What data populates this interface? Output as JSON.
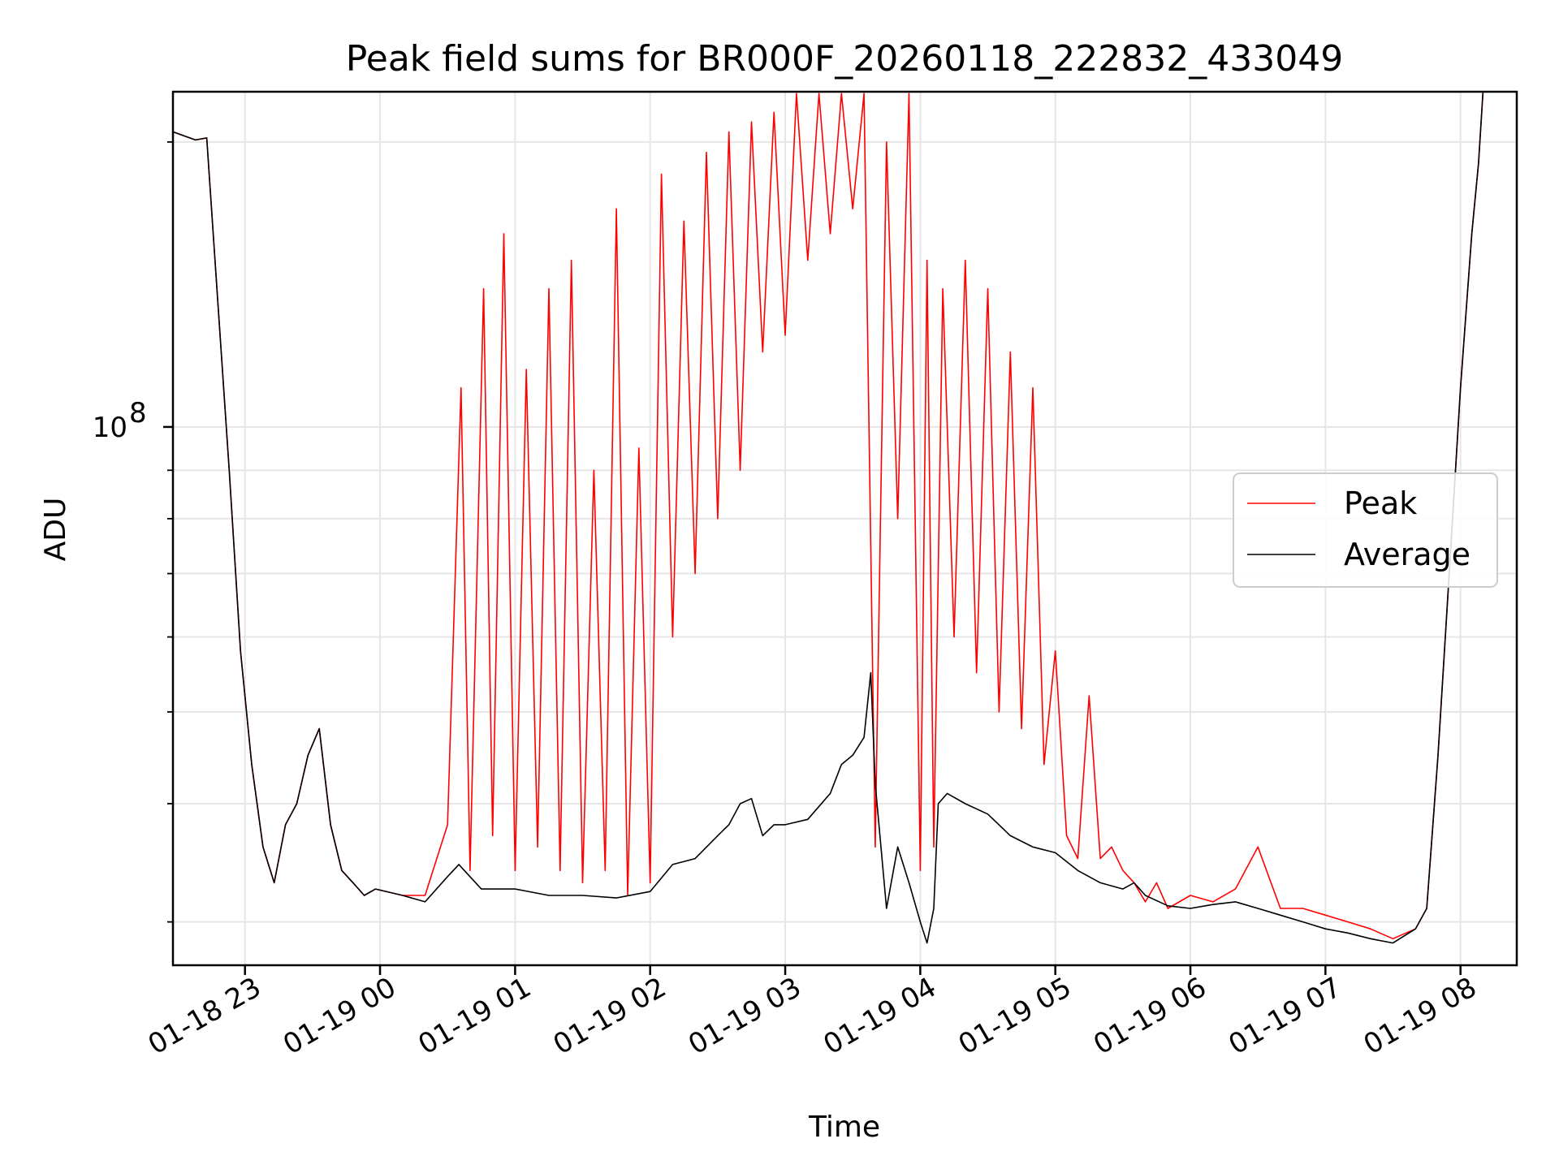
{
  "chart_data": {
    "type": "line",
    "title": "Peak field sums for BR000F_20260118_222832_433049",
    "xlabel": "Time",
    "ylabel": "ADU",
    "y_scale": "log",
    "ylim": [
      27000000,
      226000000
    ],
    "xlim": [
      "2026-01-18 22:28",
      "2026-01-19 08:25"
    ],
    "grid": true,
    "legend_position": "center-right",
    "x_ticks": [
      {
        "label": "01-18 23",
        "time": "2026-01-18 23:00"
      },
      {
        "label": "01-19 00",
        "time": "2026-01-19 00:00"
      },
      {
        "label": "01-19 01",
        "time": "2026-01-19 01:00"
      },
      {
        "label": "01-19 02",
        "time": "2026-01-19 02:00"
      },
      {
        "label": "01-19 03",
        "time": "2026-01-19 03:00"
      },
      {
        "label": "01-19 04",
        "time": "2026-01-19 04:00"
      },
      {
        "label": "01-19 05",
        "time": "2026-01-19 05:00"
      },
      {
        "label": "01-19 06",
        "time": "2026-01-19 06:00"
      },
      {
        "label": "01-19 07",
        "time": "2026-01-19 07:00"
      },
      {
        "label": "01-19 08",
        "time": "2026-01-19 08:00"
      }
    ],
    "y_ticks": [
      {
        "label": "10",
        "exponent": "8",
        "value": 100000000
      }
    ],
    "series": [
      {
        "name": "Peak",
        "color": "#ff0000",
        "x": [
          "2026-01-18 22:28",
          "2026-01-18 22:38",
          "2026-01-18 22:43",
          "2026-01-18 22:48",
          "2026-01-18 22:53",
          "2026-01-18 22:58",
          "2026-01-18 23:03",
          "2026-01-18 23:08",
          "2026-01-18 23:13",
          "2026-01-18 23:18",
          "2026-01-18 23:23",
          "2026-01-18 23:28",
          "2026-01-18 23:33",
          "2026-01-18 23:38",
          "2026-01-18 23:43",
          "2026-01-18 23:48",
          "2026-01-18 23:53",
          "2026-01-18 23:58",
          "2026-01-19 00:10",
          "2026-01-19 00:20",
          "2026-01-19 00:30",
          "2026-01-19 00:36",
          "2026-01-19 00:40",
          "2026-01-19 00:46",
          "2026-01-19 00:50",
          "2026-01-19 00:55",
          "2026-01-19 01:00",
          "2026-01-19 01:05",
          "2026-01-19 01:10",
          "2026-01-19 01:15",
          "2026-01-19 01:20",
          "2026-01-19 01:25",
          "2026-01-19 01:30",
          "2026-01-19 01:35",
          "2026-01-19 01:40",
          "2026-01-19 01:45",
          "2026-01-19 01:50",
          "2026-01-19 01:55",
          "2026-01-19 02:00",
          "2026-01-19 02:05",
          "2026-01-19 02:10",
          "2026-01-19 02:15",
          "2026-01-19 02:20",
          "2026-01-19 02:25",
          "2026-01-19 02:30",
          "2026-01-19 02:35",
          "2026-01-19 02:40",
          "2026-01-19 02:45",
          "2026-01-19 02:50",
          "2026-01-19 02:55",
          "2026-01-19 03:00",
          "2026-01-19 03:05",
          "2026-01-19 03:10",
          "2026-01-19 03:15",
          "2026-01-19 03:20",
          "2026-01-19 03:25",
          "2026-01-19 03:30",
          "2026-01-19 03:35",
          "2026-01-19 03:40",
          "2026-01-19 03:45",
          "2026-01-19 03:50",
          "2026-01-19 03:55",
          "2026-01-19 04:00",
          "2026-01-19 04:03",
          "2026-01-19 04:06",
          "2026-01-19 04:10",
          "2026-01-19 04:15",
          "2026-01-19 04:20",
          "2026-01-19 04:25",
          "2026-01-19 04:30",
          "2026-01-19 04:35",
          "2026-01-19 04:40",
          "2026-01-19 04:45",
          "2026-01-19 04:50",
          "2026-01-19 04:55",
          "2026-01-19 05:00",
          "2026-01-19 05:05",
          "2026-01-19 05:10",
          "2026-01-19 05:15",
          "2026-01-19 05:20",
          "2026-01-19 05:25",
          "2026-01-19 05:30",
          "2026-01-19 05:35",
          "2026-01-19 05:40",
          "2026-01-19 05:45",
          "2026-01-19 05:50",
          "2026-01-19 06:00",
          "2026-01-19 06:10",
          "2026-01-19 06:20",
          "2026-01-19 06:30",
          "2026-01-19 06:40",
          "2026-01-19 06:50",
          "2026-01-19 07:00",
          "2026-01-19 07:10",
          "2026-01-19 07:20",
          "2026-01-19 07:30",
          "2026-01-19 07:40",
          "2026-01-19 07:45",
          "2026-01-19 07:50",
          "2026-01-19 07:55",
          "2026-01-19 08:00",
          "2026-01-19 08:05",
          "2026-01-19 08:08",
          "2026-01-19 08:10",
          "2026-01-19 08:25"
        ],
        "y": [
          205000000,
          201000000,
          202000000,
          135000000,
          90000000,
          58000000,
          44000000,
          36000000,
          33000000,
          38000000,
          40000000,
          45000000,
          48000000,
          38000000,
          34000000,
          33000000,
          32000000,
          32500000,
          32000000,
          32000000,
          38000000,
          110000000,
          34000000,
          140000000,
          37000000,
          160000000,
          34000000,
          115000000,
          36000000,
          140000000,
          34000000,
          150000000,
          33000000,
          90000000,
          34000000,
          170000000,
          32000000,
          95000000,
          33000000,
          185000000,
          60000000,
          165000000,
          70000000,
          195000000,
          80000000,
          205000000,
          90000000,
          210000000,
          120000000,
          215000000,
          125000000,
          225000000,
          150000000,
          225000000,
          160000000,
          225000000,
          170000000,
          225000000,
          36000000,
          200000000,
          80000000,
          225000000,
          34000000,
          150000000,
          36000000,
          140000000,
          60000000,
          150000000,
          55000000,
          140000000,
          50000000,
          120000000,
          48000000,
          110000000,
          44000000,
          58000000,
          37000000,
          35000000,
          52000000,
          35000000,
          36000000,
          34000000,
          33000000,
          31500000,
          33000000,
          31000000,
          32000000,
          31500000,
          32500000,
          36000000,
          31000000,
          31000000,
          30500000,
          30000000,
          29500000,
          28800000,
          29500000,
          31000000,
          45000000,
          70000000,
          110000000,
          160000000,
          190000000,
          226000000,
          226000000
        ]
      },
      {
        "name": "Average",
        "color": "#000000",
        "x": [
          "2026-01-18 22:28",
          "2026-01-18 22:38",
          "2026-01-18 22:43",
          "2026-01-18 22:48",
          "2026-01-18 22:53",
          "2026-01-18 22:58",
          "2026-01-18 23:03",
          "2026-01-18 23:08",
          "2026-01-18 23:13",
          "2026-01-18 23:18",
          "2026-01-18 23:23",
          "2026-01-18 23:28",
          "2026-01-18 23:33",
          "2026-01-18 23:38",
          "2026-01-18 23:43",
          "2026-01-18 23:48",
          "2026-01-18 23:53",
          "2026-01-18 23:58",
          "2026-01-19 00:10",
          "2026-01-19 00:20",
          "2026-01-19 00:30",
          "2026-01-19 00:35",
          "2026-01-19 00:45",
          "2026-01-19 01:00",
          "2026-01-19 01:15",
          "2026-01-19 01:30",
          "2026-01-19 01:45",
          "2026-01-19 02:00",
          "2026-01-19 02:10",
          "2026-01-19 02:20",
          "2026-01-19 02:30",
          "2026-01-19 02:35",
          "2026-01-19 02:40",
          "2026-01-19 02:45",
          "2026-01-19 02:50",
          "2026-01-19 02:55",
          "2026-01-19 03:00",
          "2026-01-19 03:10",
          "2026-01-19 03:20",
          "2026-01-19 03:25",
          "2026-01-19 03:30",
          "2026-01-19 03:35",
          "2026-01-19 03:38",
          "2026-01-19 03:40",
          "2026-01-19 03:45",
          "2026-01-19 03:50",
          "2026-01-19 03:55",
          "2026-01-19 04:00",
          "2026-01-19 04:03",
          "2026-01-19 04:06",
          "2026-01-19 04:08",
          "2026-01-19 04:12",
          "2026-01-19 04:20",
          "2026-01-19 04:30",
          "2026-01-19 04:40",
          "2026-01-19 04:50",
          "2026-01-19 05:00",
          "2026-01-19 05:10",
          "2026-01-19 05:20",
          "2026-01-19 05:30",
          "2026-01-19 05:35",
          "2026-01-19 05:40",
          "2026-01-19 05:50",
          "2026-01-19 06:00",
          "2026-01-19 06:10",
          "2026-01-19 06:20",
          "2026-01-19 06:30",
          "2026-01-19 06:40",
          "2026-01-19 06:50",
          "2026-01-19 07:00",
          "2026-01-19 07:10",
          "2026-01-19 07:20",
          "2026-01-19 07:30",
          "2026-01-19 07:40",
          "2026-01-19 07:45",
          "2026-01-19 07:50",
          "2026-01-19 07:55",
          "2026-01-19 08:00",
          "2026-01-19 08:05",
          "2026-01-19 08:08",
          "2026-01-19 08:10",
          "2026-01-19 08:25"
        ],
        "y": [
          205000000,
          201000000,
          202000000,
          135000000,
          90000000,
          58000000,
          44000000,
          36000000,
          33000000,
          38000000,
          40000000,
          45000000,
          48000000,
          38000000,
          34000000,
          33000000,
          32000000,
          32500000,
          32000000,
          31500000,
          33500000,
          34500000,
          32500000,
          32500000,
          32000000,
          32000000,
          31800000,
          32300000,
          34500000,
          35000000,
          37000000,
          38000000,
          40000000,
          40500000,
          37000000,
          38000000,
          38000000,
          38500000,
          41000000,
          44000000,
          45000000,
          47000000,
          55000000,
          42000000,
          31000000,
          36000000,
          33000000,
          30000000,
          28500000,
          31000000,
          40000000,
          41000000,
          40000000,
          39000000,
          37000000,
          36000000,
          35500000,
          34000000,
          33000000,
          32500000,
          33000000,
          32000000,
          31200000,
          31000000,
          31300000,
          31500000,
          31000000,
          30500000,
          30000000,
          29500000,
          29200000,
          28800000,
          28500000,
          29500000,
          31000000,
          45000000,
          70000000,
          110000000,
          160000000,
          190000000,
          226000000,
          226000000
        ]
      }
    ]
  }
}
